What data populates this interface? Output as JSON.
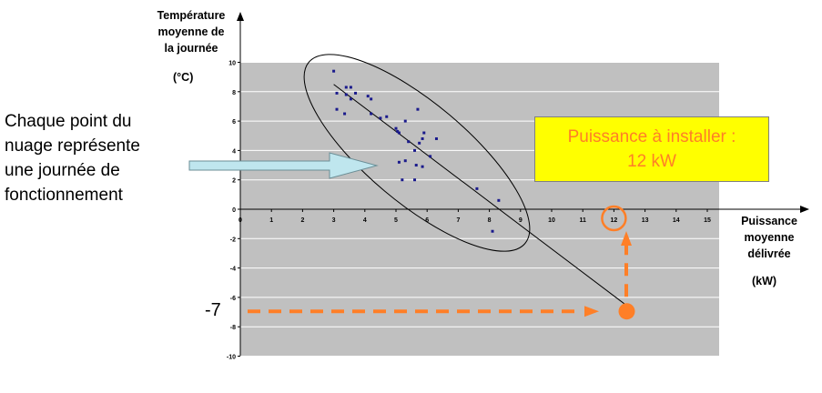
{
  "chart_data": {
    "type": "scatter",
    "ylabel_lines": [
      "Température",
      "moyenne de",
      "la journée"
    ],
    "ylabel_unit": "(°C)",
    "xlabel_lines": [
      "Puissance",
      "moyenne",
      "délivrée"
    ],
    "xlabel_unit": "(kW)",
    "xlim": [
      0,
      15.5
    ],
    "ylim": [
      -10,
      10
    ],
    "xticks": [
      0,
      1,
      2,
      3,
      4,
      5,
      6,
      7,
      8,
      9,
      10,
      11,
      12,
      13,
      14,
      15
    ],
    "yticks": [
      -10,
      -8,
      -6,
      -4,
      -2,
      0,
      2,
      4,
      6,
      8,
      10
    ],
    "plot_bg": "#c0c0c0",
    "grid": true,
    "points": [
      {
        "x": 3.0,
        "y": 9.4
      },
      {
        "x": 3.1,
        "y": 7.9
      },
      {
        "x": 3.4,
        "y": 8.3
      },
      {
        "x": 3.55,
        "y": 8.3
      },
      {
        "x": 3.4,
        "y": 7.8
      },
      {
        "x": 3.7,
        "y": 7.9
      },
      {
        "x": 3.55,
        "y": 7.5
      },
      {
        "x": 4.1,
        "y": 7.7
      },
      {
        "x": 4.2,
        "y": 7.5
      },
      {
        "x": 3.1,
        "y": 6.8
      },
      {
        "x": 3.35,
        "y": 6.5
      },
      {
        "x": 4.2,
        "y": 6.5
      },
      {
        "x": 4.5,
        "y": 6.2
      },
      {
        "x": 4.7,
        "y": 6.3
      },
      {
        "x": 5.0,
        "y": 5.5
      },
      {
        "x": 5.1,
        "y": 5.2
      },
      {
        "x": 5.05,
        "y": 5.3
      },
      {
        "x": 5.3,
        "y": 6.0
      },
      {
        "x": 5.7,
        "y": 6.8
      },
      {
        "x": 5.9,
        "y": 5.2
      },
      {
        "x": 5.85,
        "y": 4.8
      },
      {
        "x": 6.3,
        "y": 4.8
      },
      {
        "x": 5.6,
        "y": 4.0
      },
      {
        "x": 5.75,
        "y": 4.5
      },
      {
        "x": 5.4,
        "y": 4.6
      },
      {
        "x": 6.1,
        "y": 3.6
      },
      {
        "x": 5.1,
        "y": 3.2
      },
      {
        "x": 5.3,
        "y": 3.3
      },
      {
        "x": 5.65,
        "y": 3.0
      },
      {
        "x": 5.85,
        "y": 2.9
      },
      {
        "x": 5.2,
        "y": 2.0
      },
      {
        "x": 5.6,
        "y": 2.0
      },
      {
        "x": 7.6,
        "y": 1.4
      },
      {
        "x": 8.3,
        "y": 0.6
      },
      {
        "x": 8.1,
        "y": -1.5
      }
    ],
    "trendline": {
      "x1": 3.0,
      "y1": 8.5,
      "x2": 12.5,
      "y2": -6.7
    },
    "marker_point": {
      "x": 12.5,
      "y": -6.7
    },
    "circled_tick": 12,
    "accent_color": "#ff7f27"
  },
  "annotations": {
    "note_lines": [
      "Chaque point du",
      "nuage représente",
      "une journée de",
      "fonctionnement"
    ],
    "callout_lines": [
      "Puissance à installer :",
      "12 kW"
    ],
    "minus_seven_label": "-7"
  }
}
